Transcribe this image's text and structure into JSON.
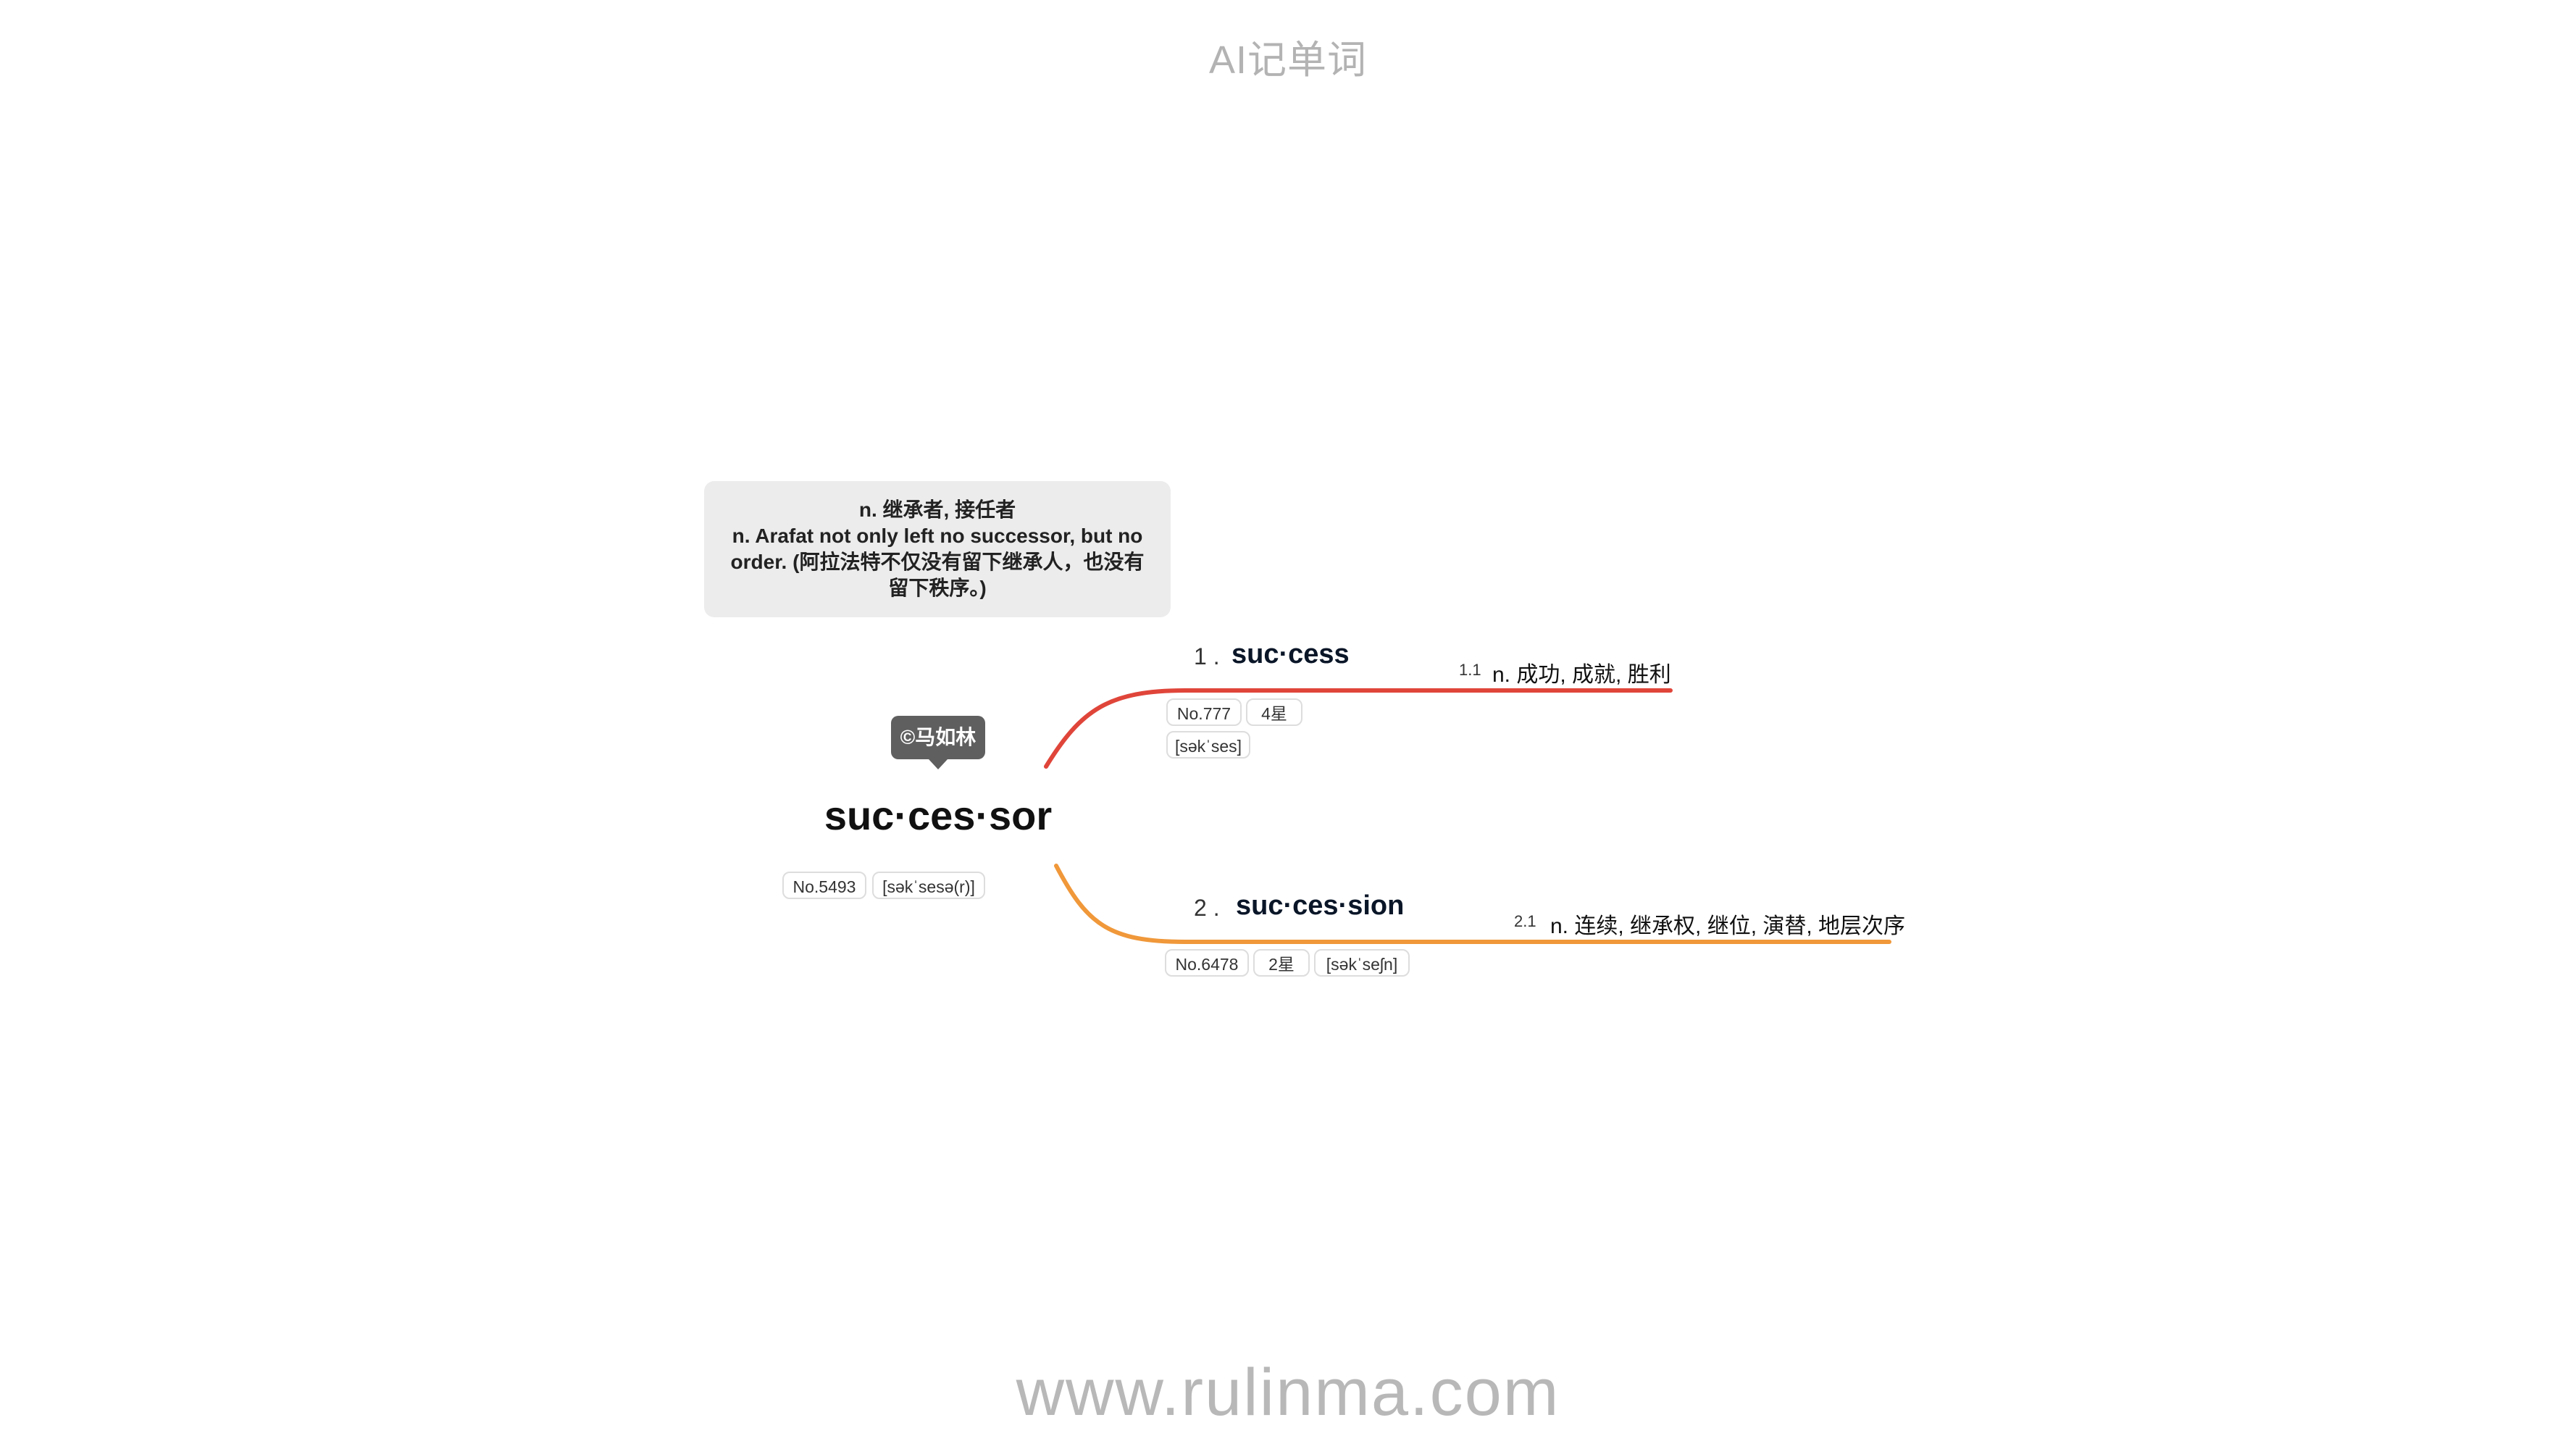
{
  "header": {
    "title": "AI记单词"
  },
  "footer": {
    "website": "www.rulinma.com"
  },
  "note": {
    "line1": "n. 继承者, 接任者",
    "line2": "n. Arafat not only left no successor, but no",
    "line3": "order. (阿拉法特不仅没有留下继承人，也没有",
    "line4": "留下秩序。)"
  },
  "copyright": "©马如林",
  "root": {
    "word": "suc·ces·sor",
    "number": "No.5493",
    "phonetic": "[səkˈsesə(r)]"
  },
  "branches": [
    {
      "index": "1 .",
      "word": "suc·cess",
      "number": "No.777",
      "stars": "4星",
      "phonetic": "[səkˈses]",
      "color": "#e0453a",
      "sub_index": "1.1",
      "definition": "n. 成功, 成就, 胜利"
    },
    {
      "index": "2 .",
      "word": "suc·ces·sion",
      "number": "No.6478",
      "stars": "2星",
      "phonetic": "[səkˈseʃn]",
      "color": "#f0983a",
      "sub_index": "2.1",
      "definition": "n. 连续, 继承权, 继位, 演替, 地层次序"
    }
  ]
}
